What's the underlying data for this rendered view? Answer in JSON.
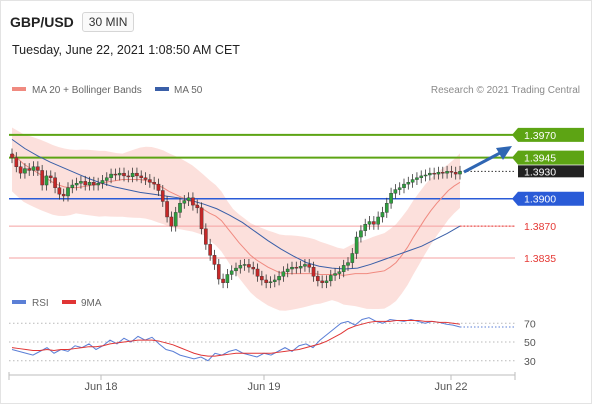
{
  "header": {
    "symbol": "GBP/USD",
    "timeframe": "30 MIN",
    "datetime": "Tuesday, June 22, 2021 1:08:50 AM CET"
  },
  "legend": {
    "ma20": "MA 20 + Bollinger Bands",
    "ma50": "MA 50",
    "copyright": "Research © 2021 Trading Central",
    "rsi": "RSI",
    "nine_ma": "9MA"
  },
  "colors": {
    "candle_up": "#2e9e3e",
    "candle_down": "#c62828",
    "bollinger_fill": "#fbdad6",
    "ma20": "#f08a80",
    "ma50": "#3a5fa8",
    "resistance": "#5da414",
    "pivot": "#2a5bd7",
    "support": "#f5a0a0",
    "support_label": "#e53935",
    "rsi": "#5b7fd6",
    "rsi_ma": "#e03434",
    "arrow": "#2f66b3"
  },
  "chart_data": [
    {
      "type": "candlestick",
      "title": "GBP/USD 30 MIN",
      "x_ticks": [
        "Jun 18",
        "Jun 19",
        "Jun 22"
      ],
      "ylim": [
        1.38,
        1.3995
      ],
      "grid": false,
      "legend_position": "top-left",
      "last_price": 1.393,
      "levels": [
        {
          "value": 1.397,
          "label": "1.3970",
          "kind": "resistance"
        },
        {
          "value": 1.3945,
          "label": "1.3945",
          "kind": "resistance"
        },
        {
          "value": 1.39,
          "label": "1.3900",
          "kind": "pivot"
        },
        {
          "value": 1.387,
          "label": "1.3870",
          "kind": "support"
        },
        {
          "value": 1.3835,
          "label": "1.3835",
          "kind": "support"
        }
      ],
      "close": [
        1.3945,
        1.3935,
        1.3928,
        1.3933,
        1.3931,
        1.3935,
        1.3931,
        1.3915,
        1.3925,
        1.3923,
        1.3912,
        1.3905,
        1.3903,
        1.3912,
        1.3915,
        1.3917,
        1.3919,
        1.3915,
        1.3918,
        1.3915,
        1.3917,
        1.392,
        1.3923,
        1.3927,
        1.3926,
        1.3928,
        1.3925,
        1.3924,
        1.3928,
        1.3925,
        1.3923,
        1.3921,
        1.3918,
        1.3916,
        1.3909,
        1.3897,
        1.388,
        1.387,
        1.3885,
        1.3895,
        1.3898,
        1.3901,
        1.3893,
        1.389,
        1.3867,
        1.385,
        1.3838,
        1.3828,
        1.3812,
        1.3808,
        1.3817,
        1.3821,
        1.3824,
        1.3827,
        1.3828,
        1.3825,
        1.3823,
        1.3815,
        1.3811,
        1.3808,
        1.3809,
        1.3811,
        1.3815,
        1.382,
        1.3823,
        1.3825,
        1.3824,
        1.3826,
        1.3828,
        1.3825,
        1.3815,
        1.381,
        1.3808,
        1.381,
        1.3816,
        1.3818,
        1.382,
        1.3827,
        1.383,
        1.384,
        1.3858,
        1.3865,
        1.3872,
        1.3875,
        1.3872,
        1.388,
        1.3885,
        1.3895,
        1.3906,
        1.391,
        1.3912,
        1.3916,
        1.3918,
        1.3921,
        1.3923,
        1.3925,
        1.3926,
        1.3928,
        1.3927,
        1.3929,
        1.3928,
        1.393,
        1.3929,
        1.3927,
        1.393
      ],
      "ma20": [
        1.395,
        1.3944,
        1.3938,
        1.3934,
        1.393,
        1.3926,
        1.3922,
        1.3918,
        1.3915,
        1.3913,
        1.3912,
        1.3912,
        1.3913,
        1.3914,
        1.3915,
        1.3916,
        1.3918,
        1.3919,
        1.392,
        1.3921,
        1.3921,
        1.3921,
        1.3921,
        1.392,
        1.3918,
        1.3915,
        1.3912,
        1.3908,
        1.3905,
        1.3902,
        1.3899,
        1.3896,
        1.3892,
        1.3888,
        1.3884,
        1.3881,
        1.3876,
        1.3868,
        1.386,
        1.3852,
        1.3845,
        1.3838,
        1.3833,
        1.3829,
        1.3825,
        1.3822,
        1.3819,
        1.3818,
        1.3818,
        1.3818,
        1.3818,
        1.3818,
        1.3818,
        1.3817,
        1.3817,
        1.3817,
        1.3817,
        1.3816,
        1.3817,
        1.3818,
        1.3818,
        1.3818,
        1.3819,
        1.382,
        1.3821,
        1.3825,
        1.383,
        1.3838,
        1.3847,
        1.3858,
        1.3868,
        1.3878,
        1.3887,
        1.3895,
        1.3902,
        1.3909,
        1.3914,
        1.3918
      ],
      "ma50": [
        1.3965,
        1.3955,
        1.3947,
        1.394,
        1.3934,
        1.3928,
        1.3922,
        1.3917,
        1.3913,
        1.391,
        1.3907,
        1.3905,
        1.3903,
        1.3901,
        1.3898,
        1.3894,
        1.3889,
        1.3882,
        1.3874,
        1.3864,
        1.3854,
        1.3845,
        1.3837,
        1.383,
        1.3826,
        1.3824,
        1.3823,
        1.3824,
        1.3828,
        1.3833,
        1.3838,
        1.3843,
        1.3848,
        1.3855,
        1.3862,
        1.387
      ]
    },
    {
      "type": "line",
      "title": "RSI",
      "yticks": [
        70,
        50,
        30
      ],
      "ylim": [
        18,
        82
      ],
      "series": [
        {
          "name": "RSI",
          "values": [
            42,
            40,
            38,
            36,
            40,
            44,
            38,
            42,
            40,
            46,
            44,
            48,
            42,
            46,
            52,
            48,
            54,
            50,
            56,
            52,
            55,
            48,
            42,
            40,
            36,
            34,
            32,
            34,
            30,
            38,
            36,
            40,
            42,
            38,
            36,
            34,
            38,
            36,
            40,
            44,
            40,
            46,
            48,
            44,
            52,
            58,
            64,
            70,
            72,
            68,
            74,
            76,
            72,
            70,
            74,
            73,
            72,
            74,
            72,
            70,
            72,
            71,
            69,
            68,
            66
          ]
        },
        {
          "name": "9MA",
          "values": [
            44,
            43,
            42,
            41,
            41,
            42,
            41,
            42,
            42,
            43,
            44,
            45,
            45,
            46,
            48,
            49,
            50,
            51,
            52,
            52,
            52,
            51,
            49,
            47,
            44,
            41,
            38,
            36,
            35,
            35,
            36,
            37,
            38,
            38,
            38,
            38,
            38,
            38,
            39,
            40,
            41,
            42,
            44,
            46,
            48,
            51,
            55,
            59,
            64,
            67,
            69,
            71,
            72,
            72,
            72,
            73,
            73,
            73,
            73,
            72,
            72,
            71,
            71,
            70,
            69
          ]
        }
      ]
    }
  ]
}
